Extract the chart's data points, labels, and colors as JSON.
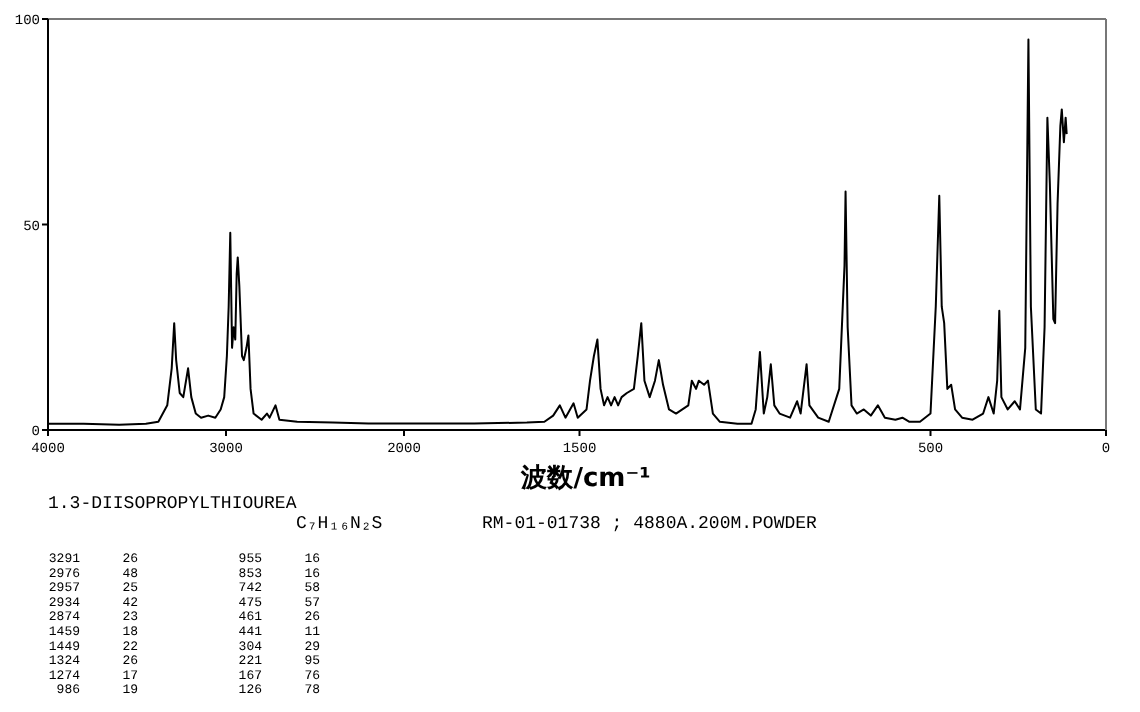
{
  "chart_data": [
    {
      "type": "line",
      "xlim": [
        4000,
        2000
      ],
      "ylim": [
        0,
        100
      ],
      "xticks": [
        4000,
        3000,
        2000
      ],
      "yticks": [
        0,
        50,
        100
      ],
      "series": [
        {
          "color": "#000000",
          "x": [
            4000,
            3800,
            3600,
            3450,
            3380,
            3330,
            3305,
            3291,
            3280,
            3260,
            3240,
            3213,
            3195,
            3170,
            3140,
            3100,
            3060,
            3030,
            3010,
            2995,
            2985,
            2976,
            2966,
            2957,
            2948,
            2940,
            2934,
            2925,
            2910,
            2900,
            2885,
            2874,
            2862,
            2845,
            2800,
            2770,
            2755,
            2722,
            2700,
            2600,
            2400,
            2200,
            2000
          ],
          "values": [
            1.5,
            1.5,
            1.3,
            1.5,
            2,
            6,
            15,
            26,
            17,
            9,
            8,
            15,
            8,
            4,
            3,
            3.5,
            3,
            5,
            8,
            18,
            30,
            48,
            20,
            25,
            22,
            38,
            42,
            35,
            18,
            17,
            20,
            23,
            10,
            4,
            2.5,
            4,
            3,
            6,
            2.5,
            2,
            1.8,
            1.6,
            1.6
          ]
        }
      ],
      "annotations": [
        "1.3-DIISOPROPYLTHIOUREA",
        "C₇H₁₆N₂S",
        "RM-01-01738 ; 4880A.200M.POWDER",
        "3291",
        "26",
        "955",
        "16",
        "2976",
        "48",
        "853",
        "16",
        "2957",
        "25",
        "742",
        "58",
        "2934",
        "42",
        "475",
        "57",
        "2874",
        "23",
        "461",
        "26",
        "1459",
        "18",
        "441",
        "11",
        "1449",
        "22",
        "304",
        "29",
        "1324",
        "26",
        "221",
        "95",
        "1274",
        "17",
        "167",
        "76",
        "986",
        "19",
        "126",
        "78"
      ]
    },
    {
      "type": "line",
      "xlim": [
        2000,
        0
      ],
      "ylim": [
        0,
        100
      ],
      "xticks": [
        1500,
        500,
        0
      ],
      "tick_labels": "x",
      "xlabel": "波数/cm⁻¹",
      "series": [
        {
          "color": "#000000",
          "x": [
            2000,
            1800,
            1650,
            1600,
            1575,
            1556,
            1540,
            1517,
            1505,
            1480,
            1470,
            1459,
            1449,
            1440,
            1430,
            1420,
            1410,
            1400,
            1390,
            1380,
            1365,
            1345,
            1334,
            1324,
            1315,
            1300,
            1285,
            1274,
            1262,
            1245,
            1225,
            1190,
            1180,
            1168,
            1160,
            1145,
            1134,
            1120,
            1100,
            1050,
            1010,
            998,
            986,
            975,
            965,
            955,
            945,
            930,
            900,
            880,
            870,
            853,
            845,
            820,
            790,
            760,
            745,
            742,
            736,
            725,
            710,
            690,
            670,
            650,
            630,
            600,
            580,
            560,
            530,
            500,
            485,
            475,
            468,
            461,
            452,
            441,
            430,
            410,
            380,
            350,
            335,
            320,
            310,
            304,
            298,
            280,
            260,
            245,
            230,
            221,
            214,
            200,
            185,
            175,
            167,
            160,
            150,
            145,
            138,
            130,
            126,
            120,
            115,
            112
          ],
          "values": [
            1.6,
            1.6,
            1.8,
            2,
            3.5,
            6,
            3,
            6.5,
            3,
            5,
            12,
            18,
            22,
            10,
            6,
            8,
            6,
            8,
            6,
            8,
            9,
            10,
            18,
            26,
            12,
            8,
            12,
            17,
            11,
            5,
            4,
            6,
            12,
            10,
            12,
            11,
            12,
            4,
            2,
            1.5,
            1.5,
            5,
            19,
            4,
            8,
            16,
            6,
            4,
            3,
            7,
            4,
            16,
            6,
            3,
            2,
            10,
            40,
            58,
            25,
            6,
            4,
            5,
            3.5,
            6,
            3,
            2.5,
            3,
            2,
            2,
            4,
            30,
            57,
            30,
            26,
            10,
            11,
            5,
            3,
            2.5,
            4,
            8,
            4,
            12,
            29,
            8,
            5,
            7,
            5,
            20,
            95,
            30,
            5,
            4,
            25,
            76,
            60,
            27,
            26,
            55,
            74,
            78,
            70,
            76,
            72
          ]
        }
      ]
    }
  ]
}
